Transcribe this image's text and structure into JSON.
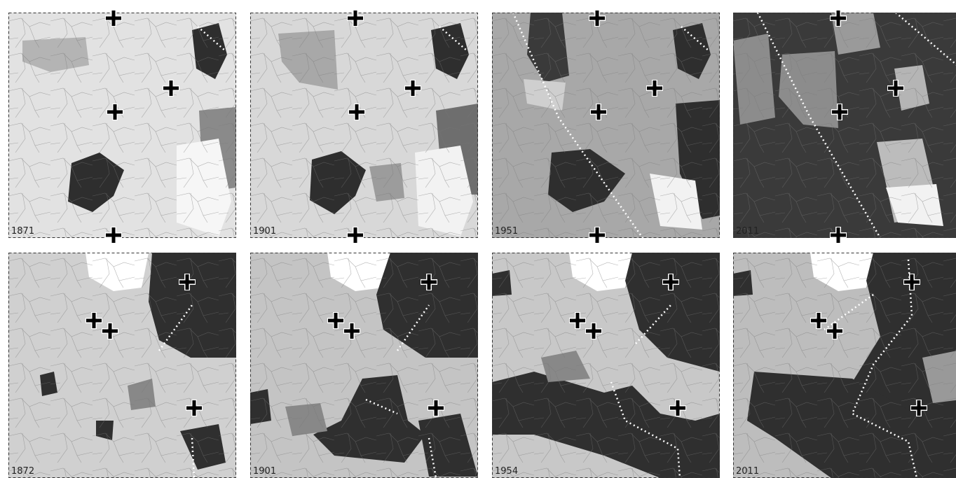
{
  "panels": [
    {
      "label": "1871"
    },
    {
      "label": "1901"
    },
    {
      "label": "1951"
    },
    {
      "label": "2011"
    },
    {
      "label": "1872"
    },
    {
      "label": "1901"
    },
    {
      "label": "1954"
    },
    {
      "label": "2011"
    }
  ]
}
